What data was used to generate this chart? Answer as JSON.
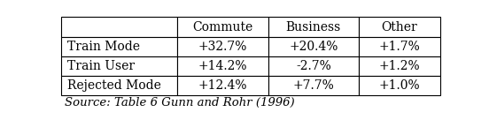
{
  "col_headers": [
    "Commute",
    "Business",
    "Other"
  ],
  "row_labels": [
    "Train Mode",
    "Train User",
    "Rejected Mode"
  ],
  "cell_data": [
    [
      "+32.7%",
      "+20.4%",
      "+1.7%"
    ],
    [
      "+14.2%",
      "-2.7%",
      "+1.2%"
    ],
    [
      "+12.4%",
      "+7.7%",
      "+1.0%"
    ]
  ],
  "source_text": "Source: Table 6 Gunn and Rohr (1996)",
  "background_color": "#ffffff",
  "border_color": "#000000",
  "text_color": "#000000",
  "font_size": 10,
  "source_font_size": 9.5,
  "fig_width": 5.52,
  "fig_height": 1.44,
  "dpi": 100
}
